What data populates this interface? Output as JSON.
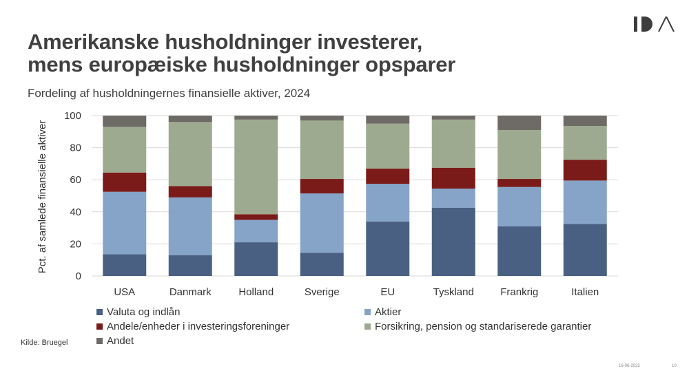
{
  "header": {
    "title_line1": "Amerikanske husholdninger investerer,",
    "title_line2": "mens europæiske husholdninger opsparer",
    "subtitle": "Fordeling af husholdningernes finansielle aktiver, 2024"
  },
  "logo": {
    "icon": "ida-logo-icon"
  },
  "footer": {
    "source": "Kilde: Bruegel",
    "date": "16-06-2025",
    "page": "10"
  },
  "colors": {
    "valuta": "#4a6083",
    "aktier": "#86a4c8",
    "andele": "#7b1b19",
    "forsikring": "#9daa8f",
    "andet": "#6e6a65",
    "grid": "#d9d9d9",
    "axis_text": "#333333"
  },
  "chart_data": {
    "type": "bar",
    "stacked": true,
    "ylabel": "Pct. af samlede finansielle aktiver",
    "ylim": [
      0,
      100
    ],
    "yticks": [
      0,
      20,
      40,
      60,
      80,
      100
    ],
    "grid": true,
    "legend_position": "bottom",
    "categories": [
      "USA",
      "Danmark",
      "Holland",
      "Sverige",
      "EU",
      "Tyskland",
      "Frankrig",
      "Italien"
    ],
    "series": [
      {
        "name": "Valuta og indlån",
        "color_key": "valuta",
        "values": [
          13.5,
          13,
          21,
          14.5,
          34,
          42.5,
          31,
          32.5
        ]
      },
      {
        "name": "Aktier",
        "color_key": "aktier",
        "values": [
          39,
          36,
          14,
          37,
          23.5,
          12,
          24.5,
          27
        ]
      },
      {
        "name": "Andele/enheder i investeringsforeninger",
        "color_key": "andele",
        "values": [
          12,
          7,
          3.5,
          9,
          9.5,
          13,
          5,
          13
        ]
      },
      {
        "name": "Forsikring, pension og standariserede garantier",
        "color_key": "forsikring",
        "values": [
          28.5,
          40,
          59,
          36.5,
          28,
          30,
          30.5,
          21
        ]
      },
      {
        "name": "Andet",
        "color_key": "andet",
        "values": [
          7,
          4,
          2.5,
          3,
          5,
          2.5,
          9,
          6.5
        ]
      }
    ]
  }
}
